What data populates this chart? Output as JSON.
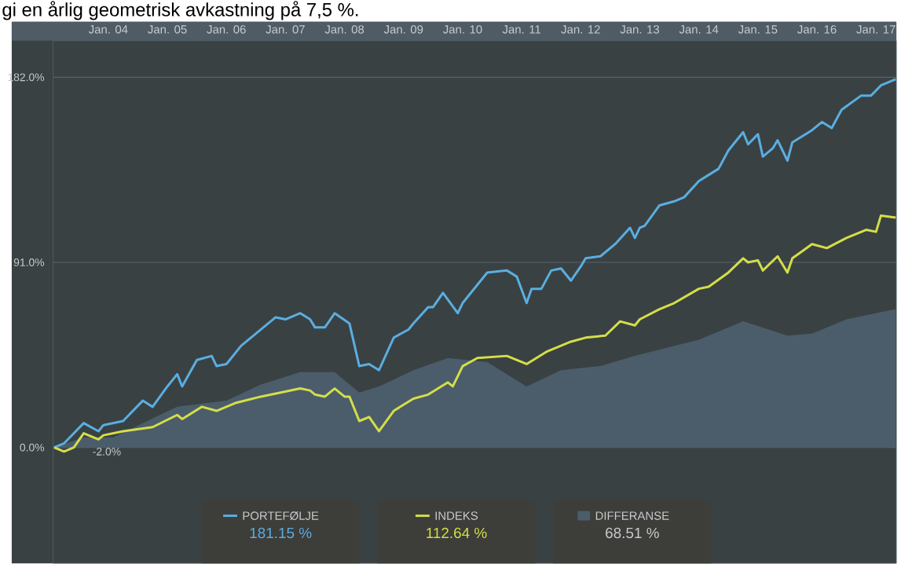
{
  "chart_data": {
    "type": "line",
    "title": "gi en årlig geometrisk avkastning på 7,5 %.",
    "xlim": [
      "2003-01-25",
      "2017-05-05"
    ],
    "xticks": [
      {
        "value": "2004-01",
        "label": "Jan. 04"
      },
      {
        "value": "2005-01",
        "label": "Jan. 05"
      },
      {
        "value": "2006-01",
        "label": "Jan. 06"
      },
      {
        "value": "2007-01",
        "label": "Jan. 07"
      },
      {
        "value": "2008-01",
        "label": "Jan. 08"
      },
      {
        "value": "2009-01",
        "label": "Jan. 09"
      },
      {
        "value": "2010-01",
        "label": "Jan. 10"
      },
      {
        "value": "2011-01",
        "label": "Jan. 11"
      },
      {
        "value": "2012-01",
        "label": "Jan. 12"
      },
      {
        "value": "2013-01",
        "label": "Jan. 13"
      },
      {
        "value": "2014-01",
        "label": "Jan. 14"
      },
      {
        "value": "2015-01",
        "label": "Jan. 15"
      },
      {
        "value": "2016-01",
        "label": "Jan. 16"
      },
      {
        "value": "2017-01",
        "label": "Jan. 17"
      }
    ],
    "ylim": [
      -57,
      200
    ],
    "yticks": [
      {
        "value": 0,
        "label": "0.0%"
      },
      {
        "value": 91,
        "label": "91.0%"
      },
      {
        "value": 182,
        "label": "182.0%"
      }
    ],
    "grid": "y",
    "legend": "bottom",
    "annotations": [
      "181.15 %",
      "112.64 %",
      "68.51 %",
      {
        "text": "-2.0%",
        "x": "2003-04",
        "y": -2
      }
    ],
    "series": [
      {
        "name": "DIFFERANSE",
        "type": "area",
        "color": "#4b5d6b",
        "x": [
          "2003-02",
          "2003-08",
          "2004-02",
          "2005-03",
          "2006-01",
          "2006-08",
          "2007-04",
          "2007-11",
          "2008-04",
          "2008-08",
          "2009-03",
          "2009-10",
          "2010-06",
          "2011-02",
          "2011-09",
          "2012-05",
          "2012-12",
          "2014-01",
          "2014-10",
          "2015-07",
          "2015-12",
          "2016-07",
          "2017-05"
        ],
        "values": [
          0,
          5,
          5,
          20,
          23,
          31,
          37,
          37,
          27,
          30,
          38,
          44,
          42,
          30,
          38,
          40,
          45,
          53,
          62,
          55,
          56,
          63,
          68
        ]
      },
      {
        "name": "PORTEFØLJE",
        "color": "#5aaee0",
        "x": [
          "2003-02",
          "2003-04",
          "2003-08",
          "2003-11",
          "2003-12",
          "2004-04",
          "2004-08",
          "2004-10",
          "2005-01",
          "2005-03",
          "2005-04",
          "2005-07",
          "2005-10",
          "2005-11",
          "2006-01",
          "2006-04",
          "2006-07",
          "2006-11",
          "2007-01",
          "2007-04",
          "2007-06",
          "2007-07",
          "2007-09",
          "2007-11",
          "2008-02",
          "2008-04",
          "2008-06",
          "2008-08",
          "2008-11",
          "2009-02",
          "2009-03",
          "2009-06",
          "2009-07",
          "2009-09",
          "2009-12",
          "2010-01",
          "2010-04",
          "2010-06",
          "2010-10",
          "2010-12",
          "2011-02",
          "2011-03",
          "2011-05",
          "2011-07",
          "2011-09",
          "2011-11",
          "2012-01",
          "2012-02",
          "2012-05",
          "2012-08",
          "2012-11",
          "2012-12",
          "2013-01",
          "2013-02",
          "2013-05",
          "2013-08",
          "2013-10",
          "2014-01",
          "2014-03",
          "2014-05",
          "2014-07",
          "2014-10",
          "2014-11",
          "2015-01",
          "2015-02",
          "2015-04",
          "2015-05",
          "2015-07",
          "2015-08",
          "2015-12",
          "2016-02",
          "2016-04",
          "2016-06",
          "2016-10",
          "2016-12",
          "2017-02",
          "2017-05"
        ],
        "values": [
          0,
          2,
          12,
          8,
          11,
          13,
          23,
          20,
          30,
          36,
          30,
          43,
          45,
          40,
          41,
          50,
          56,
          64,
          63,
          66,
          63,
          59,
          59,
          66,
          61,
          40,
          41,
          38,
          54,
          58,
          61,
          69,
          69,
          76,
          66,
          71,
          80,
          86,
          87,
          84,
          71,
          78,
          78,
          87,
          88,
          82,
          89,
          93,
          94,
          100,
          108,
          103,
          108,
          109,
          119,
          121,
          123,
          131,
          134,
          137,
          146,
          155,
          149,
          154,
          143,
          147,
          151,
          141,
          150,
          156,
          160,
          157,
          166,
          173,
          173,
          178,
          181
        ]
      },
      {
        "name": "INDEKS",
        "color": "#d4de48",
        "x": [
          "2003-02",
          "2003-04",
          "2003-06",
          "2003-08",
          "2003-11",
          "2003-12",
          "2004-04",
          "2004-10",
          "2005-03",
          "2005-04",
          "2005-08",
          "2005-11",
          "2006-03",
          "2006-08",
          "2006-12",
          "2007-04",
          "2007-06",
          "2007-07",
          "2007-09",
          "2007-11",
          "2008-01",
          "2008-02",
          "2008-04",
          "2008-06",
          "2008-08",
          "2008-11",
          "2009-01",
          "2009-03",
          "2009-06",
          "2009-10",
          "2009-11",
          "2010-01",
          "2010-04",
          "2010-10",
          "2011-02",
          "2011-06",
          "2011-09",
          "2011-11",
          "2012-02",
          "2012-06",
          "2012-09",
          "2012-12",
          "2013-01",
          "2013-05",
          "2013-08",
          "2014-01",
          "2014-03",
          "2014-07",
          "2014-10",
          "2014-11",
          "2015-01",
          "2015-02",
          "2015-05",
          "2015-07",
          "2015-08",
          "2015-12",
          "2016-03",
          "2016-07",
          "2016-11",
          "2017-01",
          "2017-02",
          "2017-05"
        ],
        "values": [
          0,
          -2,
          0,
          7,
          4,
          6,
          8,
          10,
          16,
          14,
          20,
          18,
          22,
          25,
          27,
          29,
          28,
          26,
          25,
          29,
          25,
          25,
          13,
          15,
          8,
          18,
          21,
          24,
          26,
          32,
          30,
          40,
          44,
          45,
          41,
          47,
          50,
          52,
          54,
          55,
          62,
          60,
          63,
          68,
          71,
          78,
          79,
          86,
          93,
          91,
          92,
          87,
          94,
          86,
          93,
          100,
          98,
          103,
          107,
          106,
          114,
          113
        ]
      }
    ]
  }
}
